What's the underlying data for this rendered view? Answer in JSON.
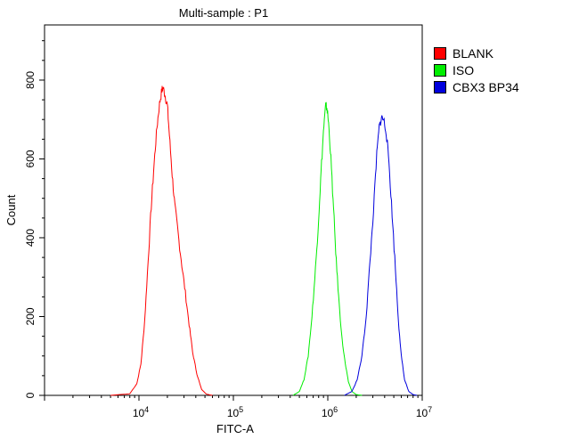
{
  "chart_data": {
    "type": "line",
    "title": "Multi-sample : P1",
    "xlabel": "FITC-A",
    "ylabel": "Count",
    "xscale": "log",
    "xlim": [
      1000,
      10000000
    ],
    "ylim": [
      0,
      940
    ],
    "x_ticks": [
      {
        "base": "10",
        "exp": "4",
        "value": 10000
      },
      {
        "base": "10",
        "exp": "5",
        "value": 100000
      },
      {
        "base": "10",
        "exp": "6",
        "value": 1000000
      },
      {
        "base": "10",
        "exp": "7",
        "value": 10000000
      }
    ],
    "y_ticks": [
      "0",
      "200",
      "400",
      "600",
      "800"
    ],
    "y_tick_values": [
      0,
      200,
      400,
      600,
      800
    ],
    "legend_position": "right",
    "series": [
      {
        "name": "BLANK",
        "color": "#ff0000",
        "points": [
          [
            5000,
            0
          ],
          [
            8000,
            4
          ],
          [
            9500,
            30
          ],
          [
            10500,
            80
          ],
          [
            11500,
            190
          ],
          [
            12500,
            340
          ],
          [
            13500,
            480
          ],
          [
            14500,
            590
          ],
          [
            15500,
            680
          ],
          [
            16500,
            740
          ],
          [
            17500,
            775
          ],
          [
            18000,
            780
          ],
          [
            19000,
            760
          ],
          [
            20000,
            735
          ],
          [
            21000,
            660
          ],
          [
            22500,
            560
          ],
          [
            24000,
            480
          ],
          [
            26000,
            410
          ],
          [
            28500,
            330
          ],
          [
            31000,
            260
          ],
          [
            34000,
            180
          ],
          [
            37000,
            110
          ],
          [
            41000,
            55
          ],
          [
            46000,
            15
          ],
          [
            52000,
            3
          ],
          [
            60000,
            0
          ]
        ]
      },
      {
        "name": "ISO",
        "color": "#00ee00",
        "points": [
          [
            430000,
            0
          ],
          [
            500000,
            10
          ],
          [
            560000,
            40
          ],
          [
            620000,
            100
          ],
          [
            680000,
            200
          ],
          [
            740000,
            320
          ],
          [
            800000,
            450
          ],
          [
            850000,
            570
          ],
          [
            900000,
            670
          ],
          [
            950000,
            735
          ],
          [
            980000,
            730
          ],
          [
            1020000,
            690
          ],
          [
            1080000,
            600
          ],
          [
            1150000,
            470
          ],
          [
            1230000,
            340
          ],
          [
            1320000,
            230
          ],
          [
            1420000,
            140
          ],
          [
            1530000,
            80
          ],
          [
            1650000,
            35
          ],
          [
            1800000,
            10
          ],
          [
            2000000,
            2
          ],
          [
            2300000,
            0
          ]
        ]
      },
      {
        "name": "CBX3 BP34",
        "color": "#0000dd",
        "points": [
          [
            1500000,
            0
          ],
          [
            1800000,
            10
          ],
          [
            2050000,
            40
          ],
          [
            2300000,
            100
          ],
          [
            2550000,
            200
          ],
          [
            2800000,
            340
          ],
          [
            3050000,
            470
          ],
          [
            3300000,
            610
          ],
          [
            3500000,
            680
          ],
          [
            3700000,
            705
          ],
          [
            3900000,
            700
          ],
          [
            4150000,
            670
          ],
          [
            4450000,
            590
          ],
          [
            4800000,
            460
          ],
          [
            5200000,
            320
          ],
          [
            5600000,
            190
          ],
          [
            6000000,
            100
          ],
          [
            6500000,
            40
          ],
          [
            7200000,
            10
          ],
          [
            8000000,
            2
          ],
          [
            8800000,
            0
          ]
        ]
      }
    ]
  }
}
